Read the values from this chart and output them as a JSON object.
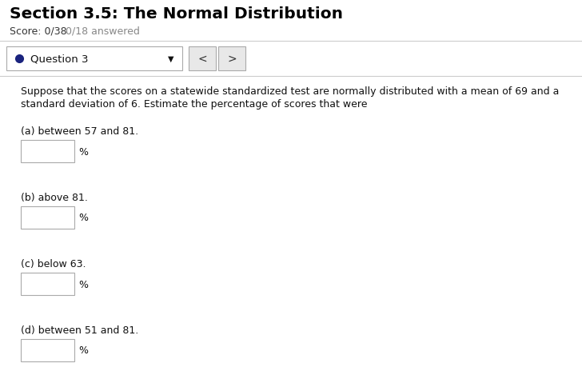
{
  "title": "Section 3.5: The Normal Distribution",
  "score_text_left": "Score: 0/38",
  "score_text_right": "0/18 answered",
  "question_label": "Question 3",
  "question_text_line1": "Suppose that the scores on a statewide standardized test are normally distributed with a mean of 69 and a",
  "question_text_line2": "standard deviation of 6. Estimate the percentage of scores that were",
  "parts": [
    "(a) between 57 and 81.",
    "(b) above 81.",
    "(c) below 63.",
    "(d) between 51 and 81."
  ],
  "bg_color": "#ffffff",
  "title_color": "#000000",
  "score_color_left": "#333333",
  "score_color_right": "#888888",
  "question_dot_color": "#1a237e",
  "text_color": "#111111",
  "box_edge_color": "#aaaaaa",
  "sep_line_color": "#cccccc",
  "nav_bg_default": "#e8e8e8",
  "nav_edge_color": "#aaaaaa",
  "nav_text_color": "#333333",
  "dropdown_edge_color": "#aaaaaa"
}
